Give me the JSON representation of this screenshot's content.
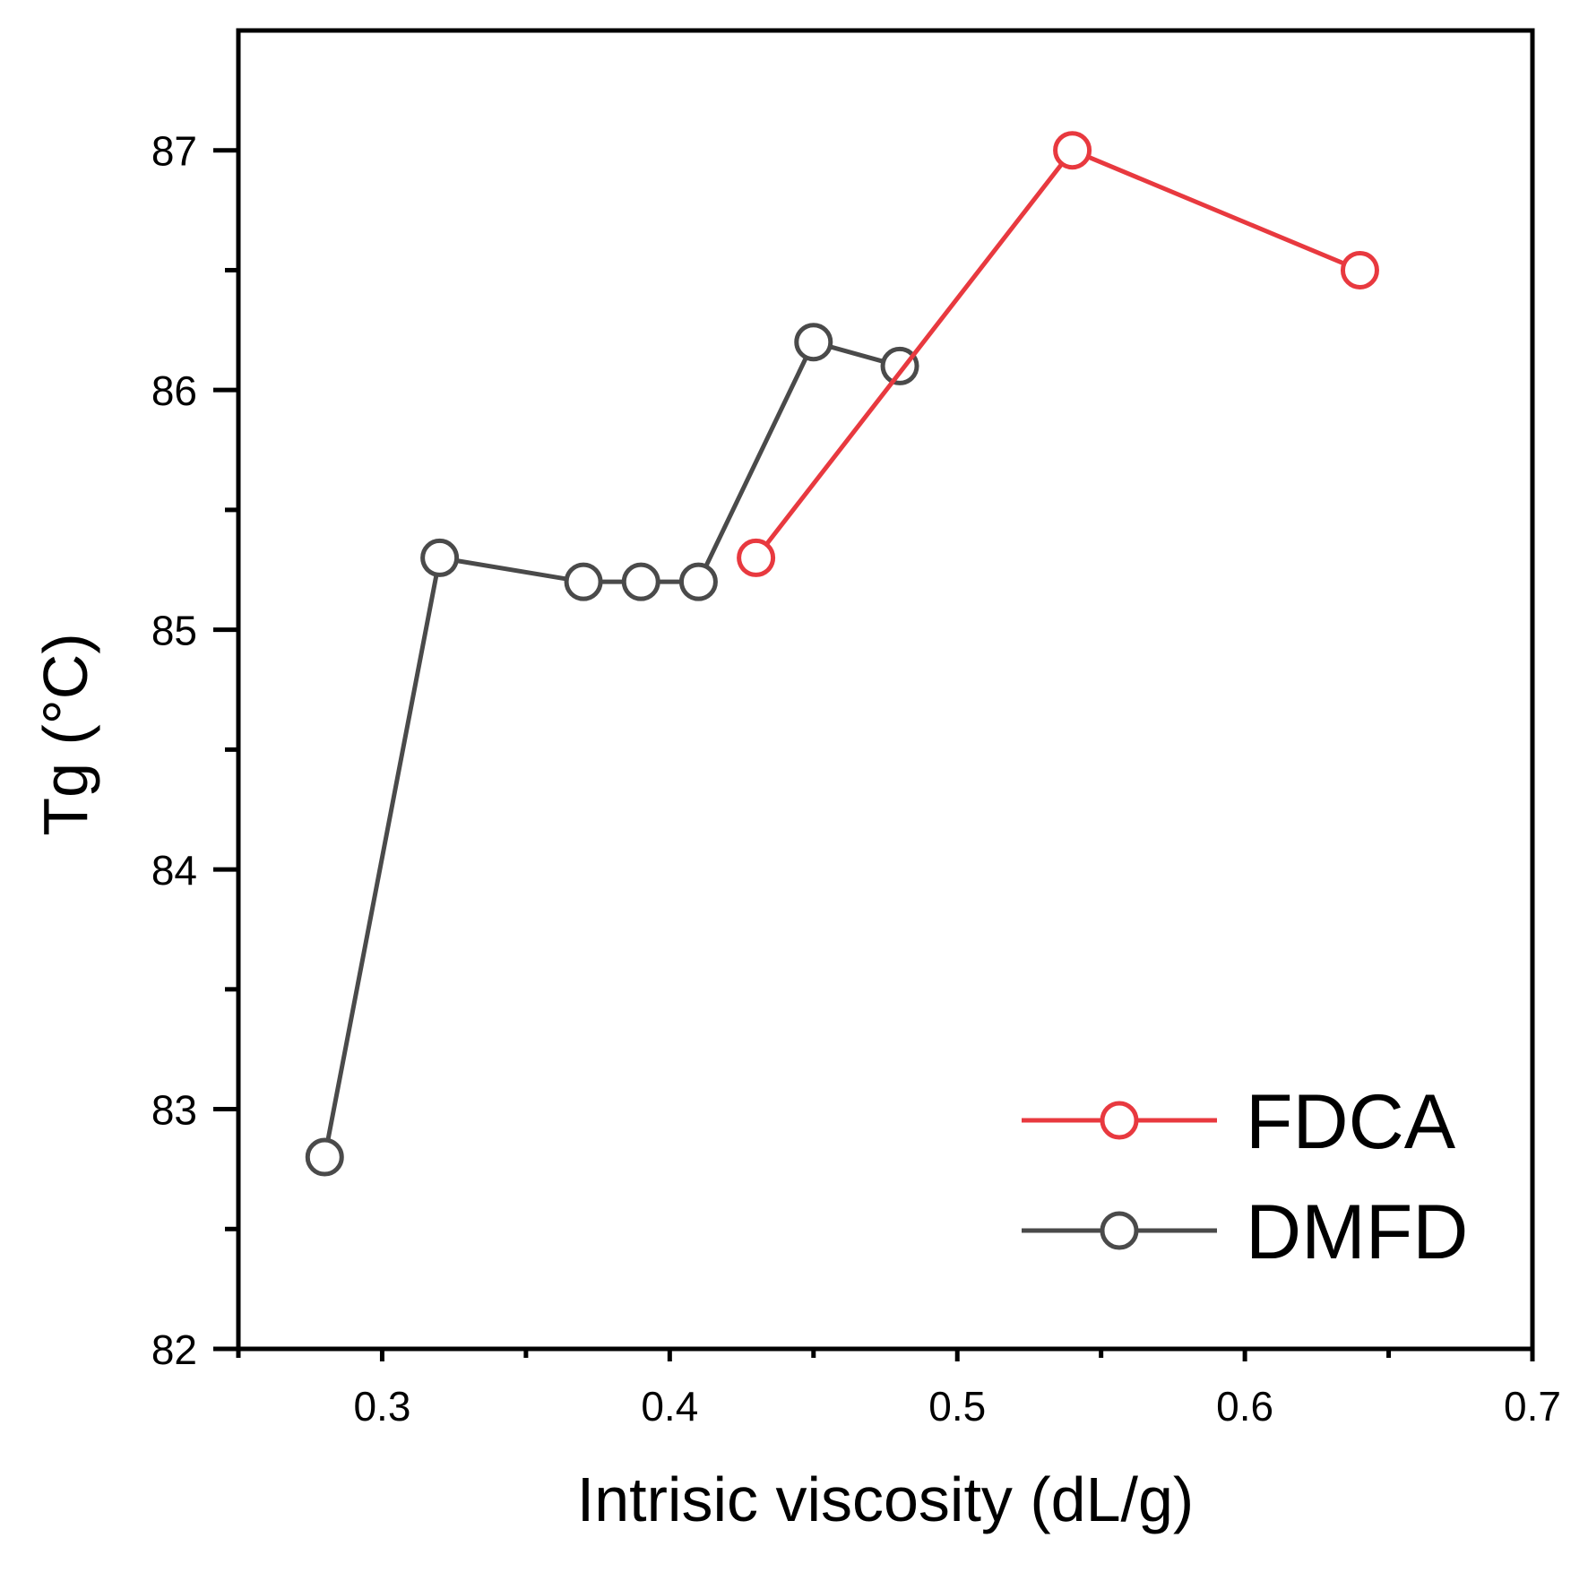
{
  "chart_data": {
    "type": "line",
    "title": "",
    "xlabel": "Intrisic viscosity (dL/g)",
    "ylabel": "Tg (°C)",
    "xlim": [
      0.25,
      0.7
    ],
    "ylim": [
      82,
      87.5
    ],
    "xticks": [
      0.3,
      0.4,
      0.5,
      0.6,
      0.7
    ],
    "xtick_labels": [
      "0.3",
      "0.4",
      "0.5",
      "0.6",
      "0.7"
    ],
    "xminor": [
      0.25,
      0.35,
      0.45,
      0.55,
      0.65
    ],
    "yticks": [
      82,
      83,
      84,
      85,
      86,
      87
    ],
    "ytick_labels": [
      "82",
      "83",
      "84",
      "85",
      "86",
      "87"
    ],
    "yminor": [
      82.5,
      83.5,
      84.5,
      85.5,
      86.5
    ],
    "grid": false,
    "legend_position": "bottom-right",
    "series": [
      {
        "name": "FDCA",
        "color": "#e8393f",
        "marker": "open-circle",
        "x": [
          0.43,
          0.54,
          0.64
        ],
        "y": [
          85.3,
          87.0,
          86.5
        ]
      },
      {
        "name": "DMFD",
        "color": "#4a4a4a",
        "marker": "open-circle",
        "x": [
          0.28,
          0.32,
          0.37,
          0.39,
          0.41,
          0.45,
          0.48
        ],
        "y": [
          82.8,
          85.3,
          85.2,
          85.2,
          85.2,
          86.2,
          86.1
        ]
      }
    ]
  }
}
